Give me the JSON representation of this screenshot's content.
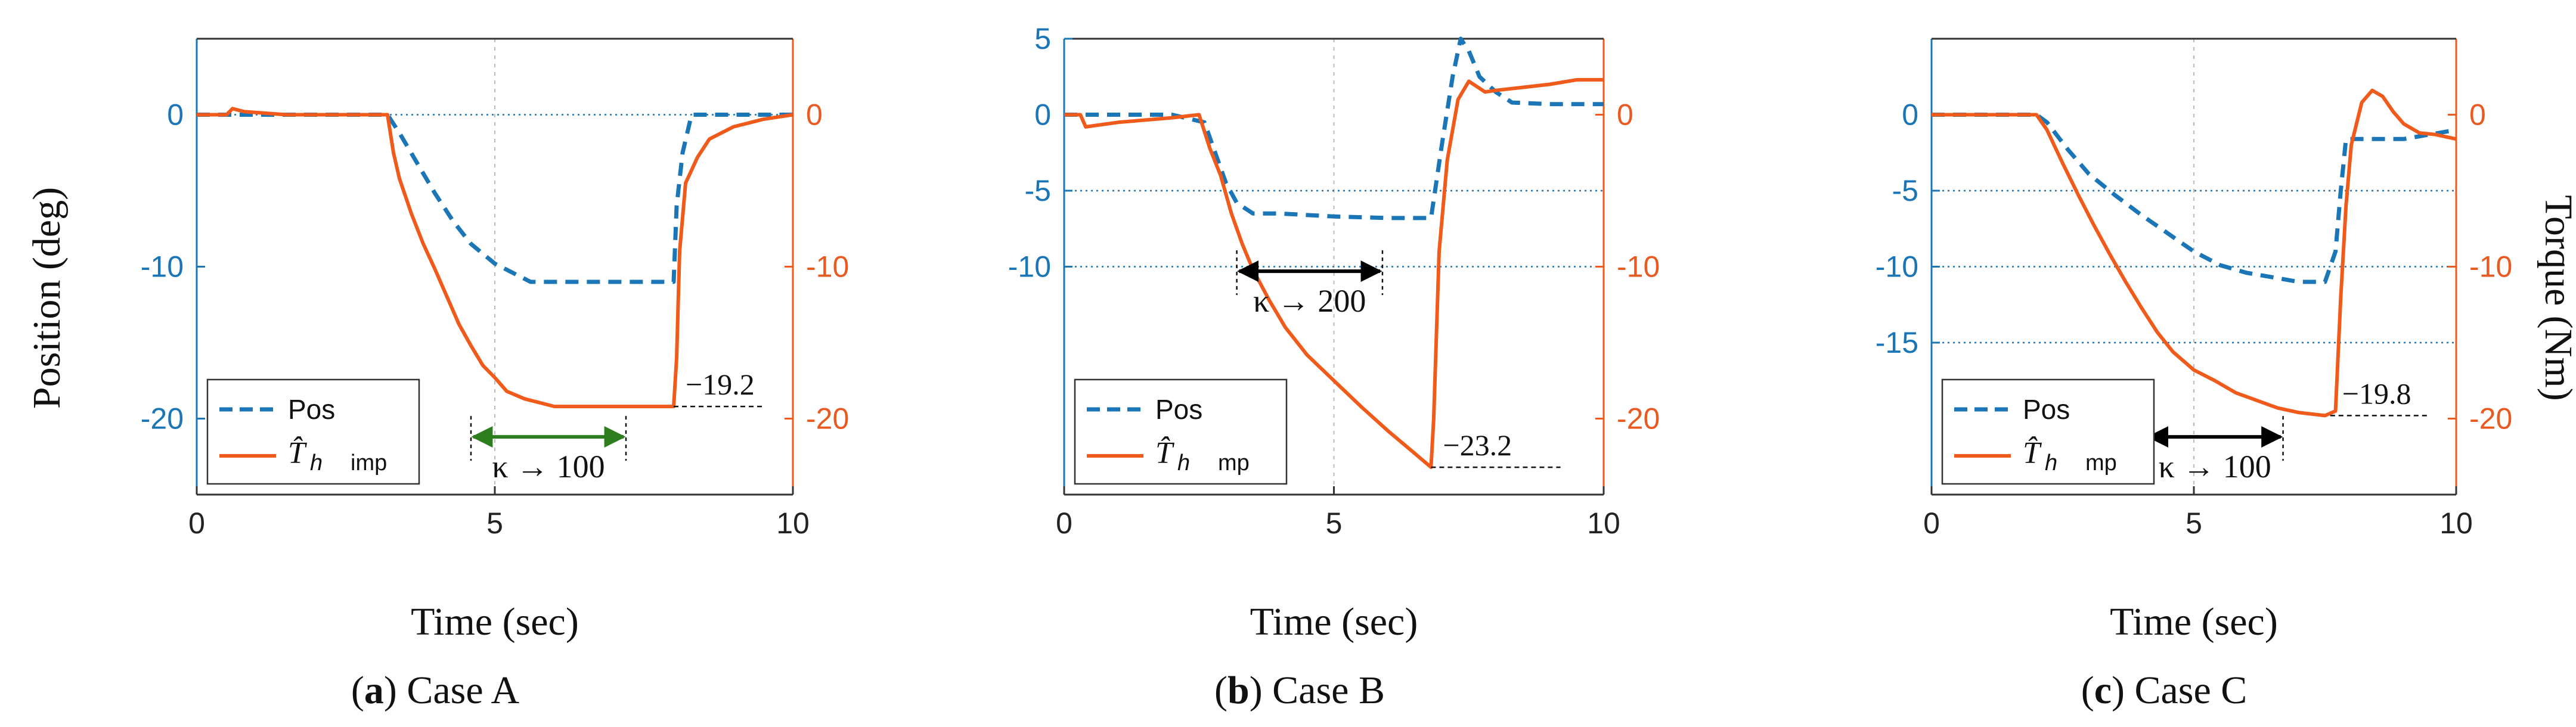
{
  "figure": {
    "left_axis_label": "Position (deg)",
    "right_axis_label": "Torque (Nm)"
  },
  "colors": {
    "position": "#1a76b6",
    "torque": "#f05a1a",
    "kappa_arrow_a": "#2e7d1f",
    "kappa_arrow_bc": "#000000"
  },
  "chart_data": [
    {
      "type": "line",
      "panel_id": "a",
      "caption_letter": "a",
      "caption_text": "Case A",
      "xlabel": "Time (sec)",
      "x_ticks": [
        "0",
        "5",
        "10"
      ],
      "y_left_ticks": [
        "0",
        "-10",
        "-20"
      ],
      "y_right_ticks": [
        "0",
        "-10",
        "-20"
      ],
      "xlim": [
        0,
        10
      ],
      "ylim_left": [
        -25,
        5
      ],
      "ylim_right": [
        -25,
        5
      ],
      "legend": {
        "pos_label": "Pos",
        "torque_symbol": "T̂",
        "torque_subscript": "h",
        "torque_suffix": "imp"
      },
      "series": [
        {
          "name": "Pos",
          "axis": "left",
          "style": "dashed",
          "x": [
            0,
            0.5,
            1,
            2,
            3.2,
            3.4,
            3.7,
            4.0,
            4.3,
            4.6,
            5.0,
            5.3,
            5.6,
            6.0,
            7.0,
            8.0,
            8.05,
            8.15,
            8.3,
            8.5,
            9.0,
            10
          ],
          "y": [
            0,
            0,
            0,
            0,
            0,
            -1.2,
            -3.2,
            -5.2,
            -7.0,
            -8.5,
            -9.8,
            -10.4,
            -11.0,
            -11.0,
            -11.0,
            -11.0,
            -6,
            -2.5,
            0,
            0,
            0,
            0
          ]
        },
        {
          "name": "T_h imp",
          "axis": "right",
          "style": "solid",
          "x": [
            0,
            0.5,
            0.6,
            0.8,
            1.5,
            3.2,
            3.3,
            3.4,
            3.6,
            3.8,
            4.0,
            4.2,
            4.4,
            4.6,
            4.8,
            5.0,
            5.2,
            5.5,
            5.8,
            6.0,
            6.5,
            7.0,
            7.5,
            8.0,
            8.05,
            8.1,
            8.2,
            8.4,
            8.6,
            9.0,
            9.5,
            10
          ],
          "y": [
            0,
            0,
            0.4,
            0.2,
            0,
            0,
            -2.5,
            -4.2,
            -6.5,
            -8.5,
            -10.2,
            -12.0,
            -13.8,
            -15.2,
            -16.5,
            -17.3,
            -18.2,
            -18.7,
            -19.0,
            -19.2,
            -19.2,
            -19.2,
            -19.2,
            -19.2,
            -16,
            -9,
            -4.5,
            -2.8,
            -1.6,
            -0.8,
            -0.3,
            0
          ]
        }
      ],
      "gridlines_left": [
        0
      ],
      "annotations": [
        {
          "kind": "value",
          "text": "−19.2",
          "x": 8.0,
          "y_right": -19.2,
          "line_x_end": 9.5
        },
        {
          "kind": "kappa",
          "text": "κ → 100",
          "x1": 4.6,
          "x2": 7.2,
          "y_right": -21.2,
          "color_key": "kappa_arrow_a"
        }
      ]
    },
    {
      "type": "line",
      "panel_id": "b",
      "caption_letter": "b",
      "caption_text": "Case B",
      "xlabel": "Time (sec)",
      "x_ticks": [
        "0",
        "5",
        "10"
      ],
      "y_left_ticks": [
        "5",
        "0",
        "-5",
        "-10"
      ],
      "y_right_ticks": [
        "0",
        "-10",
        "-20"
      ],
      "xlim": [
        0,
        10
      ],
      "ylim_left": [
        -25,
        5
      ],
      "ylim_right": [
        -25,
        5
      ],
      "legend": {
        "pos_label": "Pos",
        "torque_symbol": "T̂",
        "torque_subscript": "h",
        "torque_suffix": "mp"
      },
      "series": [
        {
          "name": "Pos",
          "axis": "left",
          "style": "dashed",
          "x": [
            0,
            0.5,
            1,
            2,
            2.6,
            2.8,
            3.0,
            3.2,
            3.5,
            4.0,
            5.0,
            6.0,
            6.8,
            7.0,
            7.2,
            7.35,
            7.5,
            7.7,
            8.0,
            8.3,
            9,
            10
          ],
          "y": [
            0,
            0,
            0,
            0,
            -0.5,
            -2.5,
            -4.5,
            -5.8,
            -6.5,
            -6.5,
            -6.7,
            -6.8,
            -6.8,
            -2,
            2.5,
            5.0,
            4.2,
            2.5,
            1.5,
            0.8,
            0.7,
            0.7
          ]
        },
        {
          "name": "T_h mp",
          "axis": "right",
          "style": "solid",
          "x": [
            0,
            0.3,
            0.4,
            1.0,
            2.0,
            2.5,
            2.7,
            2.9,
            3.1,
            3.3,
            3.5,
            3.8,
            4.1,
            4.5,
            5.0,
            5.5,
            6.0,
            6.5,
            6.8,
            6.85,
            6.95,
            7.1,
            7.3,
            7.5,
            7.8,
            8.0,
            8.5,
            9.0,
            9.5,
            10
          ],
          "y": [
            0,
            0,
            -0.8,
            -0.5,
            -0.2,
            0,
            -2.2,
            -4.0,
            -6.5,
            -8.5,
            -10.2,
            -12.2,
            -14.0,
            -15.8,
            -17.5,
            -19.2,
            -20.8,
            -22.3,
            -23.2,
            -20,
            -9,
            -3,
            1,
            2.2,
            1.5,
            1.6,
            1.8,
            2.0,
            2.3,
            2.3
          ]
        }
      ],
      "gridlines_left": [
        -5,
        -10
      ],
      "annotations": [
        {
          "kind": "value",
          "text": "−23.2",
          "x": 6.8,
          "y_right": -23.2,
          "line_x_end": 9.2
        },
        {
          "kind": "kappa",
          "text": "κ → 200",
          "x1": 3.2,
          "x2": 5.9,
          "y_right": -10.3,
          "color_key": "kappa_arrow_bc"
        }
      ]
    },
    {
      "type": "line",
      "panel_id": "c",
      "caption_letter": "c",
      "caption_text": "Case C",
      "xlabel": "Time (sec)",
      "x_ticks": [
        "0",
        "5",
        "10"
      ],
      "y_left_ticks": [
        "0",
        "-5",
        "-10",
        "-15"
      ],
      "y_right_ticks": [
        "0",
        "-10",
        "-20"
      ],
      "xlim": [
        0,
        10
      ],
      "ylim_left": [
        -25,
        5
      ],
      "ylim_right": [
        -25,
        5
      ],
      "legend": {
        "pos_label": "Pos",
        "torque_symbol": "T̂",
        "torque_subscript": "h",
        "torque_suffix": "mp"
      },
      "series": [
        {
          "name": "Pos",
          "axis": "left",
          "style": "dashed",
          "x": [
            0,
            1,
            2,
            2.2,
            2.6,
            3.0,
            3.5,
            4.0,
            4.5,
            5.0,
            5.5,
            6.0,
            6.5,
            7.0,
            7.5,
            7.7,
            7.8,
            7.9,
            8.0,
            9.0,
            10
          ],
          "y": [
            0,
            0,
            0,
            -0.5,
            -2.3,
            -3.9,
            -5.3,
            -6.6,
            -7.8,
            -9.0,
            -9.9,
            -10.4,
            -10.7,
            -11.0,
            -11.0,
            -9,
            -5,
            -1.6,
            -1.6,
            -1.6,
            -1.0
          ]
        },
        {
          "name": "T_h mp",
          "axis": "right",
          "style": "solid",
          "x": [
            0,
            1,
            2,
            2.2,
            2.5,
            2.8,
            3.1,
            3.4,
            3.7,
            4.0,
            4.3,
            4.6,
            5.0,
            5.4,
            5.8,
            6.2,
            6.6,
            7.0,
            7.5,
            7.7,
            7.8,
            7.9,
            8.0,
            8.2,
            8.4,
            8.6,
            8.8,
            9.0,
            9.3,
            9.6,
            10
          ],
          "y": [
            0,
            0,
            0,
            -1.0,
            -3.2,
            -5.3,
            -7.3,
            -9.2,
            -11.0,
            -12.7,
            -14.3,
            -15.6,
            -16.8,
            -17.5,
            -18.3,
            -18.8,
            -19.3,
            -19.6,
            -19.8,
            -19.5,
            -12,
            -6,
            -2,
            0.8,
            1.6,
            1.2,
            0.2,
            -0.6,
            -1.2,
            -1.3,
            -1.6
          ]
        }
      ],
      "gridlines_left": [
        -5,
        -10,
        -15
      ],
      "annotations": [
        {
          "kind": "value",
          "text": "−19.8",
          "x": 7.6,
          "y_right": -19.8,
          "line_x_end": 9.5
        },
        {
          "kind": "kappa",
          "text": "κ → 100",
          "x1": 4.1,
          "x2": 6.7,
          "y_right": -21.2,
          "color_key": "kappa_arrow_bc"
        }
      ]
    }
  ]
}
